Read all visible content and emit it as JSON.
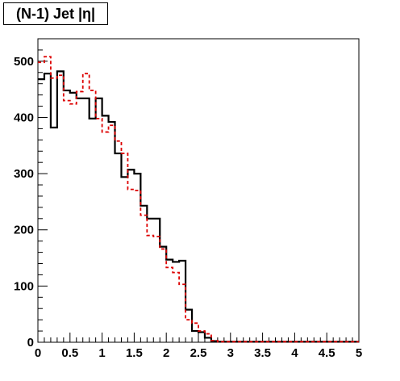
{
  "chart_data": {
    "type": "step",
    "title": "(N-1) Jet |η|",
    "xlabel": "",
    "ylabel": "",
    "xlim": [
      0,
      5
    ],
    "ylim": [
      0,
      540
    ],
    "x_ticks": [
      0,
      0.5,
      1,
      1.5,
      2,
      2.5,
      3,
      3.5,
      4,
      4.5,
      5
    ],
    "x_tick_labels": [
      "0",
      "0.5",
      "1",
      "1.5",
      "2",
      "2.5",
      "3",
      "3.5",
      "4",
      "4.5",
      "5"
    ],
    "y_ticks": [
      0,
      100,
      200,
      300,
      400,
      500
    ],
    "y_tick_labels": [
      "0",
      "100",
      "200",
      "300",
      "400",
      "500"
    ],
    "bin_width": 0.1,
    "series": [
      {
        "color": "#000000",
        "style": "solid",
        "values": [
          468,
          478,
          382,
          482,
          448,
          444,
          434,
          434,
          398,
          434,
          403,
          392,
          336,
          294,
          307,
          300,
          243,
          220,
          220,
          170,
          147,
          143,
          145,
          58,
          20,
          18,
          8,
          2,
          1,
          1,
          1,
          1,
          1,
          1,
          1,
          1,
          1,
          1,
          1,
          1,
          1,
          1,
          1,
          1,
          1,
          1,
          1,
          1,
          1,
          1
        ]
      },
      {
        "color": "#dd0000",
        "style": "dashed",
        "values": [
          498,
          508,
          470,
          475,
          430,
          424,
          446,
          478,
          448,
          398,
          374,
          386,
          358,
          336,
          272,
          270,
          226,
          190,
          188,
          166,
          133,
          124,
          103,
          40,
          34,
          20,
          15,
          3,
          1,
          1,
          1,
          1,
          1,
          1,
          1,
          1,
          1,
          1,
          1,
          1,
          1,
          1,
          1,
          1,
          1,
          1,
          1,
          1,
          1,
          1
        ]
      }
    ]
  }
}
